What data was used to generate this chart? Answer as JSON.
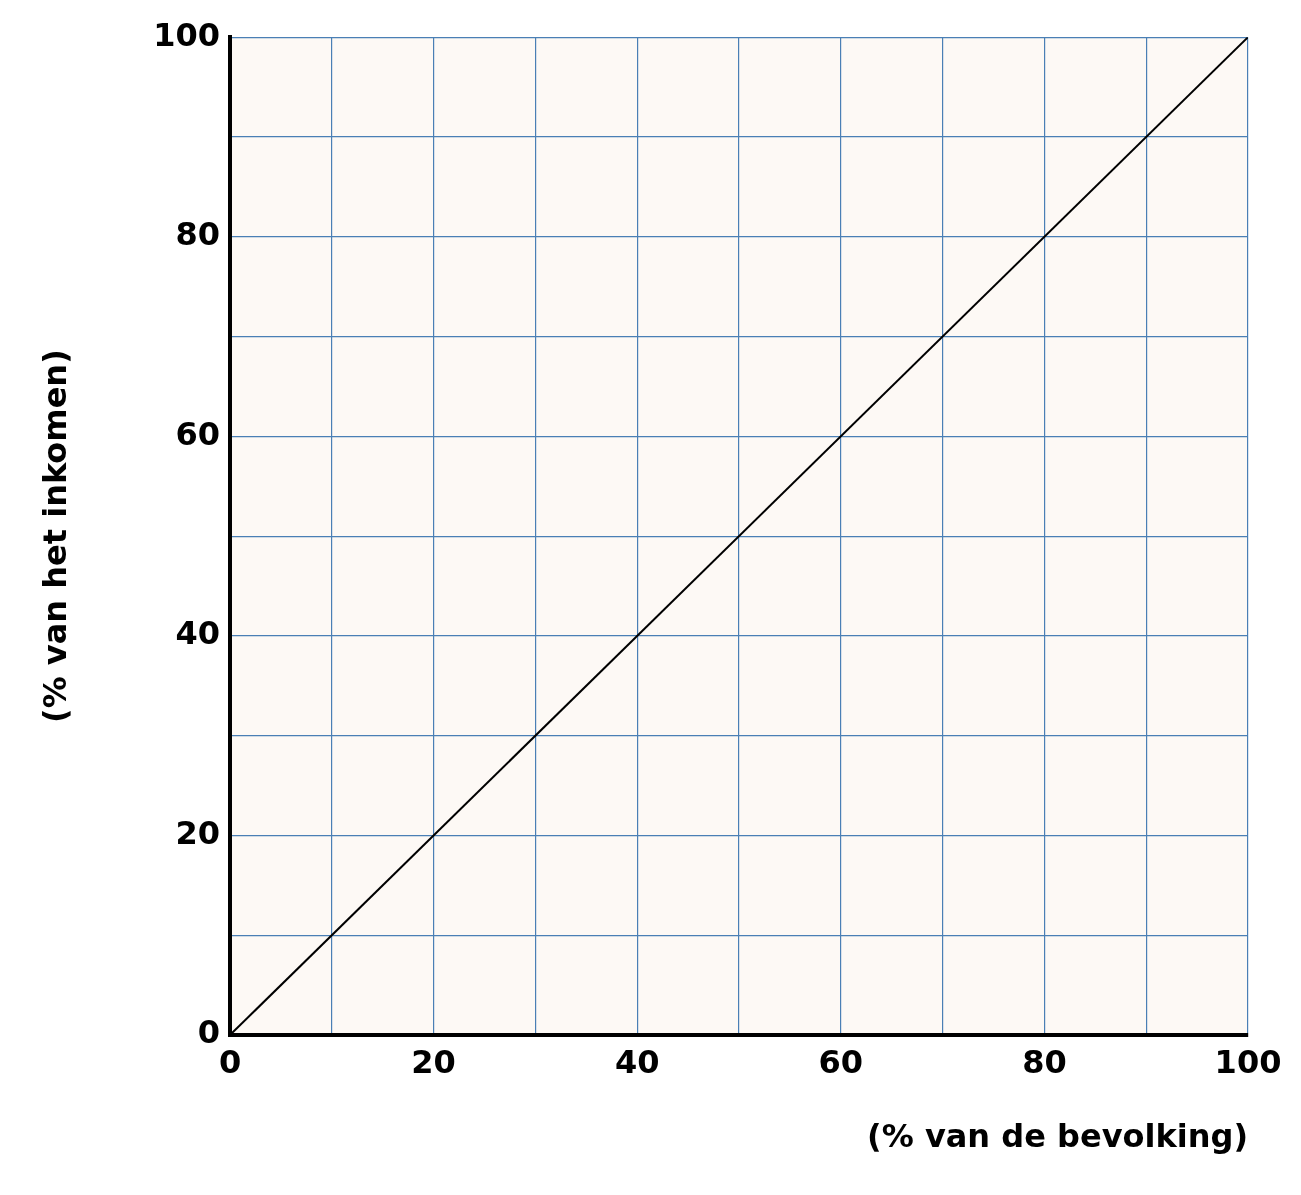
{
  "chart_data": {
    "type": "line",
    "xlabel": "(% van de bevolking)",
    "ylabel": "(% van het inkomen)",
    "x": [
      0,
      100
    ],
    "series": [
      {
        "color": "#000000",
        "values": [
          0,
          100
        ]
      }
    ],
    "xlim": [
      0,
      100
    ],
    "ylim": [
      0,
      100
    ],
    "xticks": [
      0,
      {
        "value": 10,
        "label": null
      },
      20,
      {
        "value": 30,
        "label": null
      },
      40,
      {
        "value": 50,
        "label": null
      },
      60,
      {
        "value": 70,
        "label": null
      },
      80,
      {
        "value": 90,
        "label": null
      },
      100
    ],
    "yticks": [
      0,
      {
        "value": 10,
        "label": null
      },
      20,
      {
        "value": 30,
        "label": null
      },
      40,
      {
        "value": 50,
        "label": null
      },
      60,
      {
        "value": 70,
        "label": null
      },
      80,
      {
        "value": 90,
        "label": null
      },
      100
    ],
    "grid": true,
    "legend": false,
    "marker": "none",
    "line_style": "solid"
  }
}
